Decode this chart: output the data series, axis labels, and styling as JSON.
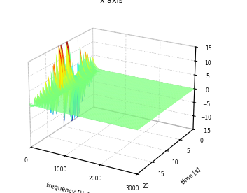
{
  "title": "x axis",
  "xlabel": "frequency [Hz]",
  "ylabel": "time [s]",
  "xlim": [
    0,
    3000
  ],
  "ylim": [
    0,
    20
  ],
  "zlim": [
    -15,
    15
  ],
  "xticks": [
    0,
    1000,
    2000,
    3000
  ],
  "yticks": [
    0,
    5,
    10,
    15,
    20
  ],
  "zticks": [
    -15,
    -10,
    -5,
    0,
    5,
    10,
    15
  ],
  "freq_max": 3000,
  "time_max": 20,
  "amp_max": 15,
  "background_color": "#ffffff",
  "cmap": "jet",
  "elev": 22,
  "azim": -60
}
